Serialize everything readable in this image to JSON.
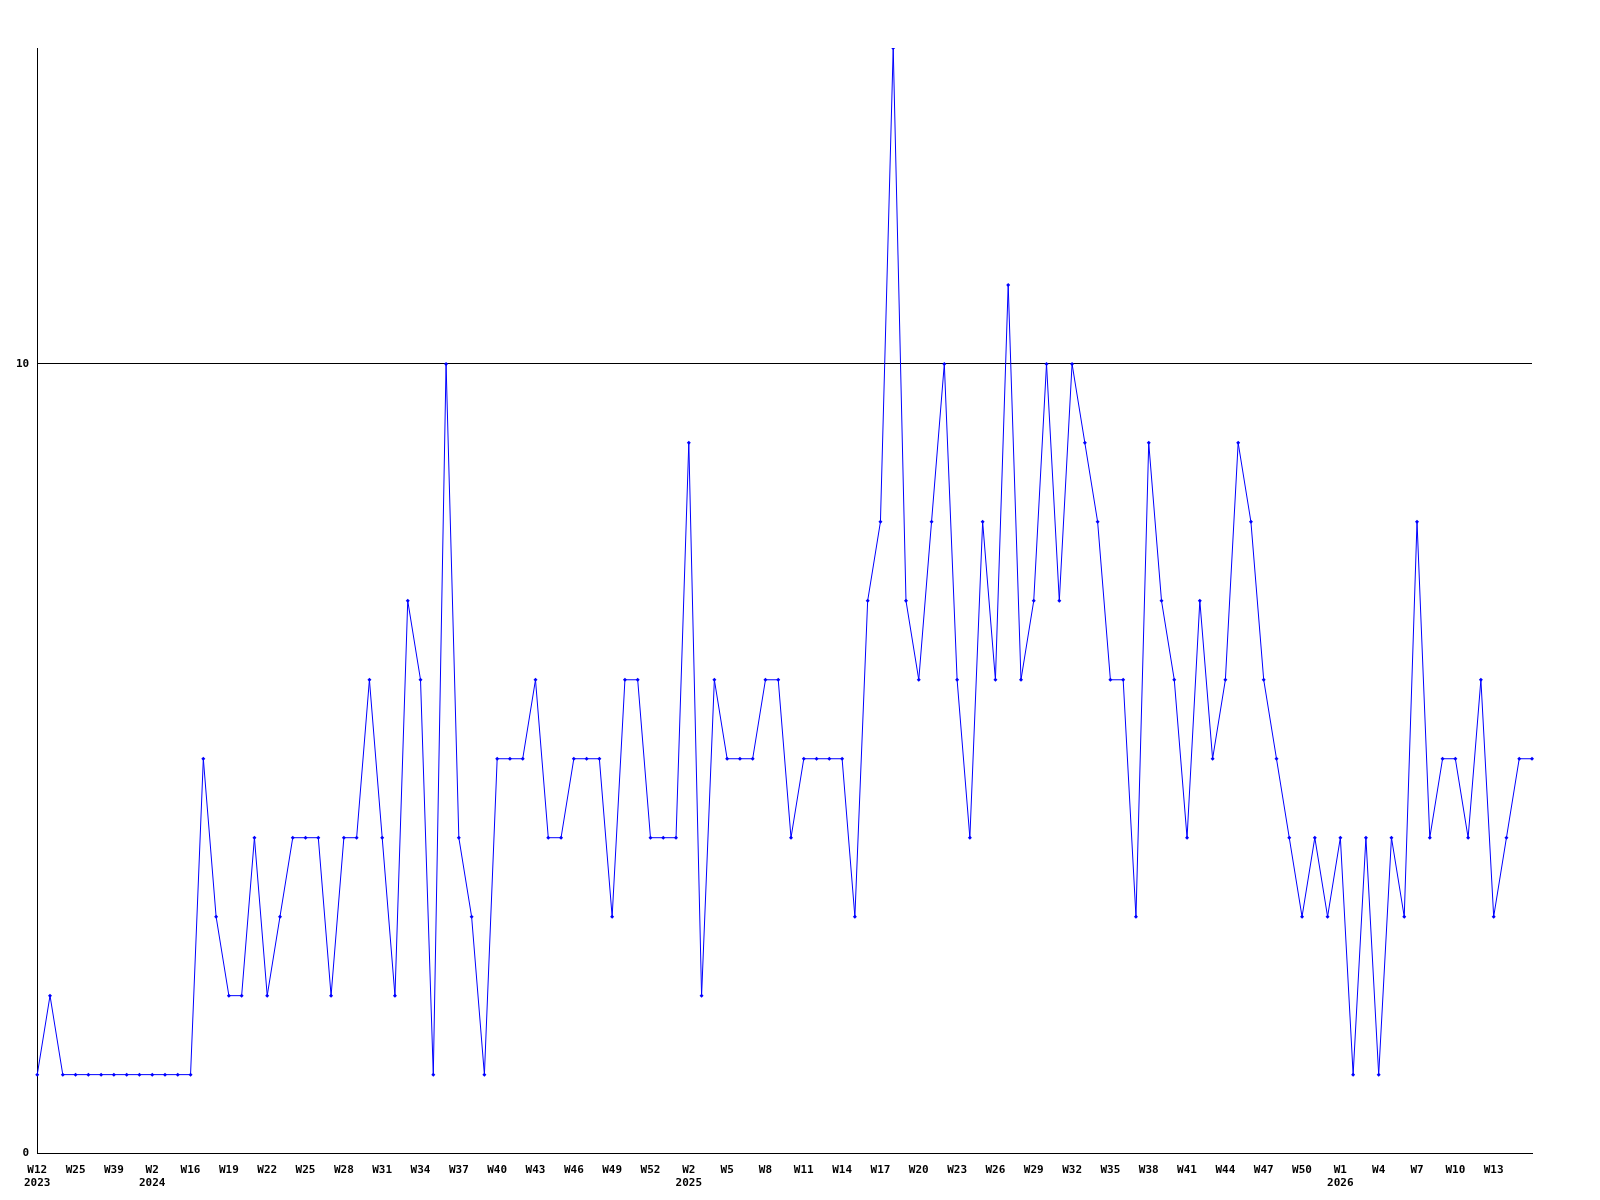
{
  "chart_data": {
    "type": "line",
    "categories": [
      "W12\n2023",
      null,
      null,
      "W25",
      null,
      null,
      "W39",
      null,
      null,
      "W2\n2024",
      null,
      null,
      "W16",
      null,
      null,
      "W19",
      null,
      null,
      "W22",
      null,
      null,
      "W25",
      null,
      null,
      "W28",
      null,
      null,
      "W31",
      null,
      null,
      "W34",
      null,
      null,
      "W37",
      null,
      null,
      "W40",
      null,
      null,
      "W43",
      null,
      null,
      "W46",
      null,
      null,
      "W49",
      null,
      null,
      "W52",
      null,
      null,
      "W2\n2025",
      null,
      null,
      "W5",
      null,
      null,
      "W8",
      null,
      null,
      "W11",
      null,
      null,
      "W14",
      null,
      null,
      "W17",
      null,
      null,
      "W20",
      null,
      null,
      "W23",
      null,
      null,
      "W26",
      null,
      null,
      "W29",
      null,
      null,
      "W32",
      null,
      null,
      "W35",
      null,
      null,
      "W38",
      null,
      null,
      "W41",
      null,
      null,
      "W44",
      null,
      null,
      "W47",
      null,
      null,
      "W50",
      null,
      null,
      "W1\n2026",
      null,
      null,
      "W4",
      null,
      null,
      "W7",
      null,
      null,
      "W10",
      null,
      null,
      "W13",
      null,
      null,
      null
    ],
    "series": [
      {
        "color": "#0000ff",
        "values": [
          1,
          2,
          1,
          1,
          1,
          1,
          1,
          1,
          1,
          1,
          1,
          1,
          1,
          5,
          3,
          2,
          2,
          4,
          2,
          3,
          4,
          4,
          4,
          2,
          4,
          4,
          6,
          4,
          2,
          7,
          6,
          1,
          10,
          4,
          3,
          1,
          5,
          5,
          5,
          6,
          4,
          4,
          5,
          5,
          5,
          3,
          6,
          6,
          4,
          4,
          4,
          9,
          2,
          6,
          5,
          5,
          5,
          6,
          6,
          4,
          5,
          5,
          5,
          5,
          3,
          7,
          8,
          14,
          7,
          6,
          8,
          10,
          6,
          4,
          8,
          6,
          11,
          6,
          7,
          10,
          7,
          10,
          9,
          8,
          6,
          6,
          3,
          9,
          7,
          6,
          4,
          7,
          5,
          6,
          9,
          8,
          6,
          5,
          4,
          3,
          4,
          3,
          4,
          1,
          4,
          1,
          4,
          3,
          8,
          4,
          5,
          5,
          4,
          6,
          3,
          4,
          5,
          5
        ]
      }
    ],
    "ylim": [
      0,
      14
    ],
    "yticks": [
      0,
      10
    ],
    "grid": "y",
    "legend": false,
    "marker": "diamond",
    "line_style": "solid"
  }
}
